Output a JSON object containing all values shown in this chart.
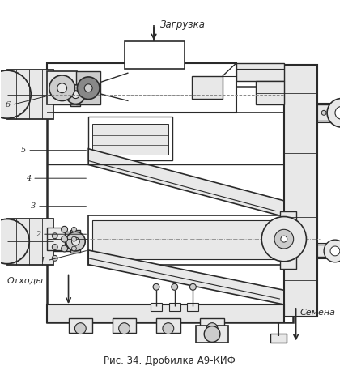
{
  "title": "Рис. 34. Дробилка А9-КИФ",
  "label_zagr": "Загрузка",
  "label_othody": "Отходы",
  "label_semena": "Семена",
  "bg_color": "#ffffff",
  "line_color": "#2a2a2a",
  "gray_fill": "#e8e8e8",
  "dark_fill": "#cccccc",
  "white_fill": "#ffffff"
}
